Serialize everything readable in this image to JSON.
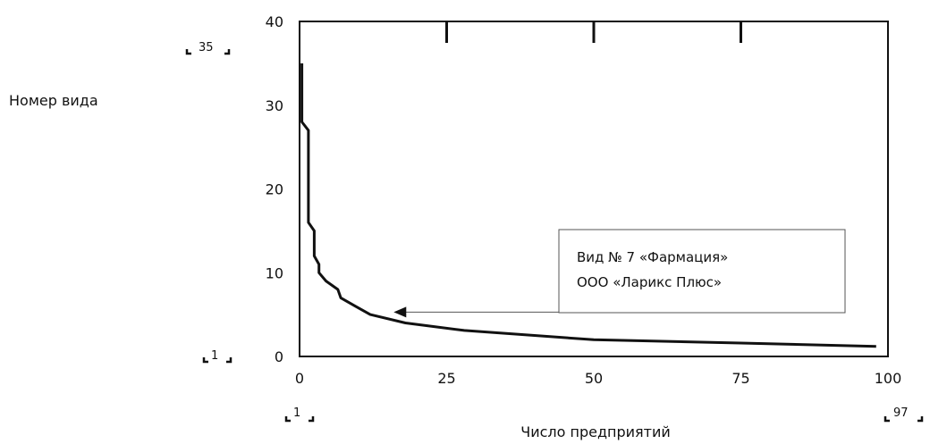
{
  "colors": {
    "line": "#111111",
    "frame": "#111111",
    "callout_border": "#555555",
    "background": "#ffffff"
  },
  "chart_data": {
    "type": "line",
    "title": "",
    "xlabel": "Число предприятий",
    "ylabel": "Номер вида",
    "xlim": [
      0,
      100
    ],
    "ylim": [
      0,
      40
    ],
    "x_ticks": [
      0,
      25,
      50,
      75,
      100
    ],
    "y_ticks": [
      0,
      10,
      20,
      30,
      40
    ],
    "x_tick_labels": [
      "0",
      "25",
      "50",
      "75",
      "100"
    ],
    "y_tick_labels": [
      "0",
      "10",
      "20",
      "30",
      "40"
    ],
    "grid": false,
    "legend": "none",
    "series": [
      {
        "points": [
          [
            0.4,
            35
          ],
          [
            0.4,
            28
          ],
          [
            1.5,
            27
          ],
          [
            1.5,
            16
          ],
          [
            2.5,
            15
          ],
          [
            2.5,
            12
          ],
          [
            3.3,
            11
          ],
          [
            3.3,
            10
          ],
          [
            4.5,
            9
          ],
          [
            6.5,
            8
          ],
          [
            7,
            7
          ],
          [
            9.5,
            6
          ],
          [
            12,
            5
          ],
          [
            18,
            4
          ],
          [
            28,
            3.1
          ],
          [
            50,
            2
          ],
          [
            75,
            1.6
          ],
          [
            98,
            1.2
          ]
        ]
      }
    ],
    "annotations": [
      {
        "text_lines": [
          "Вид № 7 «Фармация»",
          "ООО «Ларикс Плюс»"
        ],
        "arrow_to": [
          16,
          5.3
        ],
        "arrow_from_x": 44
      }
    ],
    "corner_marks": {
      "y_top": "35",
      "y_bottom": "1",
      "x_left": "1",
      "x_right": "97"
    }
  }
}
